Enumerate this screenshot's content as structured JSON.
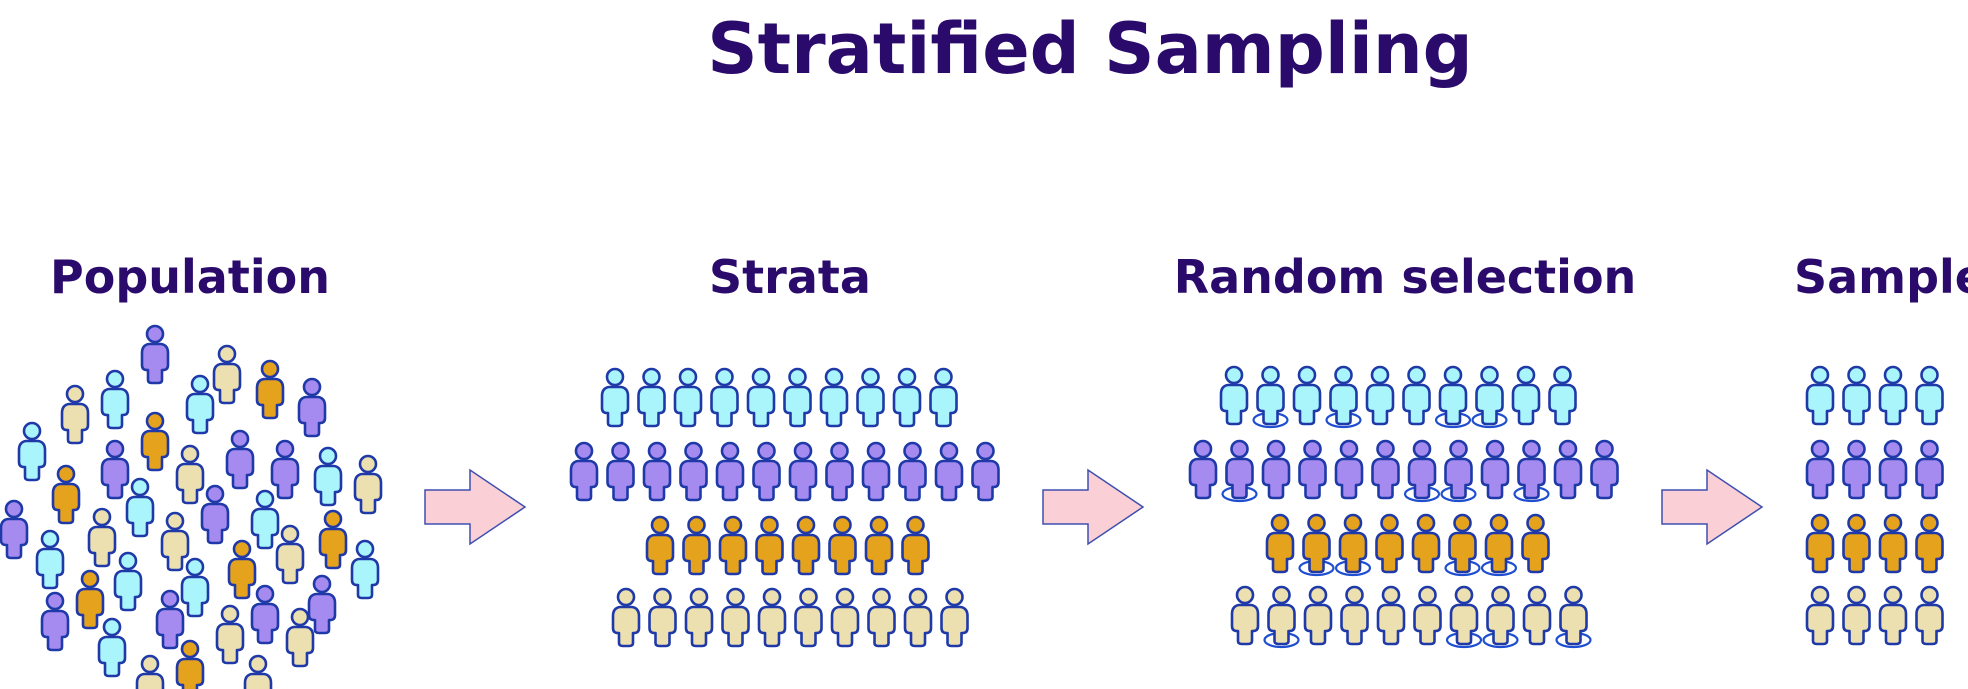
{
  "title": "Stratified Sampling",
  "stages": {
    "population": "Population",
    "strata": "Strata",
    "random_selection": "Random selection",
    "sample": "Sample"
  },
  "colors": {
    "title": "#2a0a6b",
    "outline": "#1f3aa8",
    "cyan": "#a9f5fb",
    "purple": "#a58bf0",
    "orange": "#e4a21d",
    "beige": "#ecdfb0",
    "arrow_fill": "#fad0d6",
    "arrow_stroke": "#3e4fb0",
    "selection_ring": "#1f4fd0"
  },
  "icons": [
    "person-icon",
    "arrow-right-icon",
    "selection-ring"
  ],
  "strata_counts": {
    "cyan": 10,
    "purple": 12,
    "orange": 8,
    "beige": 10
  },
  "selected_per_stratum": {
    "cyan": 4,
    "purple": 4,
    "orange": 4,
    "beige": 4
  }
}
